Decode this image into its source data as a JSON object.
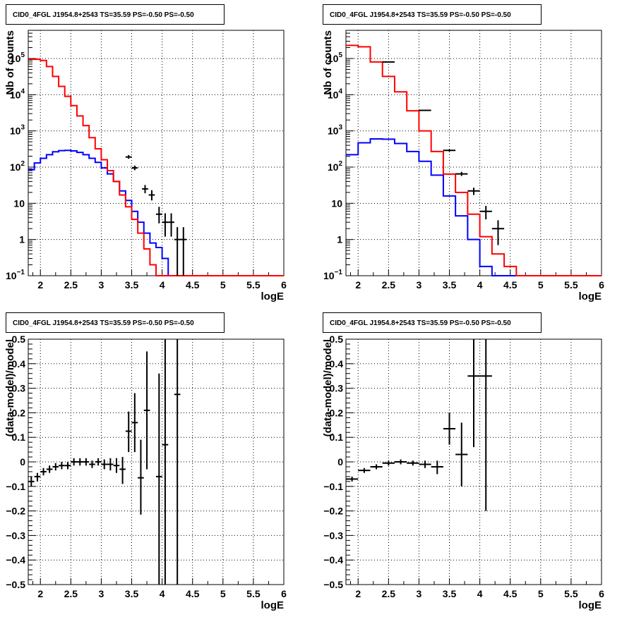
{
  "colors": {
    "data": "#000000",
    "total_model": "#ff0000",
    "source_model": "#0000ff",
    "grid": "#000000"
  },
  "panels": [
    {
      "id": "spectrum-fine",
      "kind": "log",
      "title": "CID0_4FGL J1954.8+2543 TS=35.59 PS=-0.50 PS=-0.50",
      "xlabel": "logE",
      "ylabel": "Nb of counts",
      "xlim": [
        1.8,
        6.0
      ],
      "ylim": [
        0.1,
        600000
      ],
      "x_ticks": [
        2,
        2.5,
        3,
        3.5,
        4,
        4.5,
        5,
        5.5,
        6
      ],
      "x_tick_labels": [
        "2",
        "2.5",
        "3",
        "3.5",
        "4",
        "4.5",
        "5",
        "5.5",
        "6"
      ],
      "y_ticks": [
        0.1,
        1,
        10,
        100,
        1000,
        10000,
        100000
      ],
      "y_tick_labels": [
        [
          "10",
          "−1"
        ],
        [
          "1",
          ""
        ],
        [
          "10",
          ""
        ],
        [
          "10",
          "2"
        ],
        [
          "10",
          "3"
        ],
        [
          "10",
          "4"
        ],
        [
          "10",
          "5"
        ]
      ],
      "bin_edges": [
        1.8,
        1.9,
        2.0,
        2.1,
        2.2,
        2.3,
        2.4,
        2.5,
        2.6,
        2.7,
        2.8,
        2.9,
        3.0,
        3.1,
        3.2,
        3.3,
        3.4,
        3.5,
        3.6,
        3.7,
        3.8,
        3.9,
        4.0,
        4.1,
        4.2,
        4.3,
        4.4,
        4.5,
        4.6,
        4.7,
        4.8,
        4.9,
        5.0,
        5.1,
        5.2,
        5.3,
        5.4,
        5.5,
        5.6,
        5.7,
        5.8,
        5.9,
        6.0
      ],
      "total_model": [
        95000,
        95000,
        88000,
        60000,
        32000,
        17000,
        9000,
        5000,
        2600,
        1400,
        650,
        320,
        160,
        80,
        40,
        17,
        8,
        3.6,
        1.5,
        0.55,
        0.2,
        0.1,
        0.1,
        0.1,
        0.1,
        0.1,
        0.1,
        0.1,
        0.1,
        0.1,
        0.1,
        0.1,
        0.1,
        0.1,
        0.1,
        0.1,
        0.1,
        0.1,
        0.1,
        0.1,
        0.1,
        0.1
      ],
      "source_model": [
        85,
        130,
        175,
        220,
        265,
        285,
        290,
        280,
        255,
        220,
        175,
        135,
        95,
        65,
        40,
        22,
        12,
        6,
        3,
        1.5,
        0.8,
        0.6,
        0.3,
        0.1,
        0.1,
        0.1,
        0.1,
        0.1,
        0.1,
        0.1,
        0.1,
        0.1,
        0.1,
        0.1,
        0.1,
        0.1,
        0.1,
        0.1,
        0.1,
        0.1,
        0.1,
        0.1
      ],
      "data_points": [
        {
          "x": 3.45,
          "y": 190,
          "lo": 170,
          "hi": 215,
          "xerr": 0.05
        },
        {
          "x": 3.55,
          "y": 95,
          "lo": 82,
          "hi": 110,
          "xerr": 0.05
        },
        {
          "x": 3.72,
          "y": 25,
          "lo": 19,
          "hi": 32,
          "xerr": 0.05
        },
        {
          "x": 3.83,
          "y": 17,
          "lo": 12,
          "hi": 23,
          "xerr": 0.05
        },
        {
          "x": 3.95,
          "y": 5,
          "lo": 2.8,
          "hi": 8,
          "xerr": 0.05
        },
        {
          "x": 4.05,
          "y": 3,
          "lo": 1.2,
          "hi": 5.3,
          "xerr": 0.05
        },
        {
          "x": 4.15,
          "y": 3,
          "lo": 1.2,
          "hi": 5.3,
          "xerr": 0.05
        },
        {
          "x": 4.25,
          "y": 1,
          "lo": 0.1,
          "hi": 2.2,
          "xerr": 0.05
        },
        {
          "x": 4.35,
          "y": 1,
          "lo": 0.1,
          "hi": 2.2,
          "xerr": 0.05
        }
      ]
    },
    {
      "id": "spectrum-coarse",
      "kind": "log",
      "title": "CID0_4FGL J1954.8+2543 TS=35.59 PS=-0.50 PS=-0.50",
      "xlabel": "logE",
      "ylabel": "Nb of counts",
      "xlim": [
        1.8,
        6.0
      ],
      "ylim": [
        0.1,
        600000
      ],
      "x_ticks": [
        2,
        2.5,
        3,
        3.5,
        4,
        4.5,
        5,
        5.5,
        6
      ],
      "x_tick_labels": [
        "2",
        "2.5",
        "3",
        "3.5",
        "4",
        "4.5",
        "5",
        "5.5",
        "6"
      ],
      "y_ticks": [
        0.1,
        1,
        10,
        100,
        1000,
        10000,
        100000
      ],
      "y_tick_labels": [
        [
          "10",
          "−1"
        ],
        [
          "1",
          ""
        ],
        [
          "10",
          ""
        ],
        [
          "10",
          "2"
        ],
        [
          "10",
          "3"
        ],
        [
          "10",
          "4"
        ],
        [
          "10",
          "5"
        ]
      ],
      "bin_edges": [
        1.8,
        2.0,
        2.2,
        2.4,
        2.6,
        2.8,
        3.0,
        3.2,
        3.4,
        3.6,
        3.8,
        4.0,
        4.2,
        4.4,
        4.6,
        4.8,
        5.0,
        5.2,
        5.4,
        5.6,
        5.8,
        6.0
      ],
      "total_model": [
        230000,
        210000,
        80000,
        32000,
        12000,
        3600,
        1000,
        270,
        64,
        20,
        5,
        1.2,
        0.4,
        0.18,
        0.1,
        0.1,
        0.1,
        0.1,
        0.1,
        0.1,
        0.1
      ],
      "source_model": [
        220,
        470,
        600,
        590,
        450,
        270,
        145,
        60,
        16,
        4.5,
        1,
        0.18,
        0.1,
        0.1,
        0.1,
        0.1,
        0.1,
        0.1,
        0.1,
        0.1,
        0.1
      ],
      "data_points": [
        {
          "x": 2.5,
          "y": 80000,
          "lo": 79000,
          "hi": 81000,
          "xerr": 0.1
        },
        {
          "x": 3.1,
          "y": 3700,
          "lo": 3600,
          "hi": 3800,
          "xerr": 0.1
        },
        {
          "x": 3.5,
          "y": 290,
          "lo": 270,
          "hi": 310,
          "xerr": 0.1
        },
        {
          "x": 3.7,
          "y": 65,
          "lo": 57,
          "hi": 74,
          "xerr": 0.1
        },
        {
          "x": 3.9,
          "y": 22,
          "lo": 17,
          "hi": 27,
          "xerr": 0.1
        },
        {
          "x": 4.1,
          "y": 6,
          "lo": 3.6,
          "hi": 8.5,
          "xerr": 0.1
        },
        {
          "x": 4.3,
          "y": 2,
          "lo": 0.7,
          "hi": 3.4,
          "xerr": 0.1
        }
      ]
    },
    {
      "id": "residual-fine",
      "kind": "linear",
      "title": "CID0_4FGL J1954.8+2543 TS=35.59 PS=-0.50 PS=-0.50",
      "xlabel": "logE",
      "ylabel": "(data-model)/model",
      "xlim": [
        1.8,
        6.0
      ],
      "ylim": [
        -0.5,
        0.5
      ],
      "x_ticks": [
        2,
        2.5,
        3,
        3.5,
        4,
        4.5,
        5,
        5.5,
        6
      ],
      "x_tick_labels": [
        "2",
        "2.5",
        "3",
        "3.5",
        "4",
        "4.5",
        "5",
        "5.5",
        "6"
      ],
      "y_ticks": [
        -0.5,
        -0.4,
        -0.3,
        -0.2,
        -0.1,
        0,
        0.1,
        0.2,
        0.3,
        0.4,
        0.5
      ],
      "y_tick_labels": [
        "−0.5",
        "−0.4",
        "−0.3",
        "−0.2",
        "−0.1",
        "0",
        "0.1",
        "0.2",
        "0.3",
        "0.4",
        "0.5"
      ],
      "data_points": [
        {
          "x": 1.85,
          "y": -0.08,
          "lo": -0.1,
          "hi": -0.06,
          "xerr": 0.05
        },
        {
          "x": 1.95,
          "y": -0.06,
          "lo": -0.08,
          "hi": -0.045,
          "xerr": 0.05
        },
        {
          "x": 2.05,
          "y": -0.04,
          "lo": -0.055,
          "hi": -0.025,
          "xerr": 0.05
        },
        {
          "x": 2.15,
          "y": -0.03,
          "lo": -0.045,
          "hi": -0.015,
          "xerr": 0.05
        },
        {
          "x": 2.25,
          "y": -0.02,
          "lo": -0.035,
          "hi": -0.005,
          "xerr": 0.05
        },
        {
          "x": 2.35,
          "y": -0.015,
          "lo": -0.03,
          "hi": 0.0,
          "xerr": 0.05
        },
        {
          "x": 2.45,
          "y": -0.015,
          "lo": -0.03,
          "hi": 0.0,
          "xerr": 0.05
        },
        {
          "x": 2.55,
          "y": 0.0,
          "lo": -0.015,
          "hi": 0.015,
          "xerr": 0.05
        },
        {
          "x": 2.65,
          "y": 0.0,
          "lo": -0.015,
          "hi": 0.015,
          "xerr": 0.05
        },
        {
          "x": 2.75,
          "y": 0.0,
          "lo": -0.015,
          "hi": 0.015,
          "xerr": 0.05
        },
        {
          "x": 2.85,
          "y": -0.01,
          "lo": -0.025,
          "hi": 0.005,
          "xerr": 0.05
        },
        {
          "x": 2.95,
          "y": 0.0,
          "lo": -0.015,
          "hi": 0.015,
          "xerr": 0.05
        },
        {
          "x": 3.05,
          "y": -0.01,
          "lo": -0.03,
          "hi": 0.01,
          "xerr": 0.05
        },
        {
          "x": 3.15,
          "y": -0.01,
          "lo": -0.035,
          "hi": 0.015,
          "xerr": 0.05
        },
        {
          "x": 3.25,
          "y": -0.015,
          "lo": -0.045,
          "hi": 0.015,
          "xerr": 0.05
        },
        {
          "x": 3.35,
          "y": -0.03,
          "lo": -0.09,
          "hi": 0.02,
          "xerr": 0.05
        },
        {
          "x": 3.45,
          "y": 0.125,
          "lo": 0.04,
          "hi": 0.205,
          "xerr": 0.05
        },
        {
          "x": 3.55,
          "y": 0.16,
          "lo": 0.04,
          "hi": 0.28,
          "xerr": 0.05
        },
        {
          "x": 3.65,
          "y": -0.065,
          "lo": -0.215,
          "hi": 0.09,
          "xerr": 0.05
        },
        {
          "x": 3.75,
          "y": 0.21,
          "lo": -0.03,
          "hi": 0.45,
          "xerr": 0.05
        },
        {
          "x": 3.95,
          "y": -0.06,
          "lo": -0.5,
          "hi": 0.36,
          "xerr": 0.05
        },
        {
          "x": 4.05,
          "y": 0.07,
          "lo": -0.5,
          "hi": 0.5,
          "xerr": 0.05
        },
        {
          "x": 4.25,
          "y": 0.275,
          "lo": -0.5,
          "hi": 0.5,
          "xerr": 0.05
        }
      ]
    },
    {
      "id": "residual-coarse",
      "kind": "linear",
      "title": "CID0_4FGL J1954.8+2543 TS=35.59 PS=-0.50 PS=-0.50",
      "xlabel": "logE",
      "ylabel": "(data-model)/model",
      "xlim": [
        1.8,
        6.0
      ],
      "ylim": [
        -0.5,
        0.5
      ],
      "x_ticks": [
        2,
        2.5,
        3,
        3.5,
        4,
        4.5,
        5,
        5.5,
        6
      ],
      "x_tick_labels": [
        "2",
        "2.5",
        "3",
        "3.5",
        "4",
        "4.5",
        "5",
        "5.5",
        "6"
      ],
      "y_ticks": [
        -0.5,
        -0.4,
        -0.3,
        -0.2,
        -0.1,
        0,
        0.1,
        0.2,
        0.3,
        0.4,
        0.5
      ],
      "y_tick_labels": [
        "−0.5",
        "−0.4",
        "−0.3",
        "−0.2",
        "−0.1",
        "0",
        "0.1",
        "0.2",
        "0.3",
        "0.4",
        "0.5"
      ],
      "data_points": [
        {
          "x": 1.9,
          "y": -0.07,
          "lo": -0.08,
          "hi": -0.06,
          "xerr": 0.1
        },
        {
          "x": 2.1,
          "y": -0.035,
          "lo": -0.045,
          "hi": -0.025,
          "xerr": 0.1
        },
        {
          "x": 2.3,
          "y": -0.02,
          "lo": -0.03,
          "hi": -0.01,
          "xerr": 0.1
        },
        {
          "x": 2.5,
          "y": -0.005,
          "lo": -0.015,
          "hi": 0.005,
          "xerr": 0.1
        },
        {
          "x": 2.7,
          "y": 0.0,
          "lo": -0.01,
          "hi": 0.01,
          "xerr": 0.1
        },
        {
          "x": 2.9,
          "y": -0.005,
          "lo": -0.015,
          "hi": 0.005,
          "xerr": 0.1
        },
        {
          "x": 3.1,
          "y": -0.01,
          "lo": -0.025,
          "hi": 0.005,
          "xerr": 0.1
        },
        {
          "x": 3.3,
          "y": -0.02,
          "lo": -0.05,
          "hi": 0.005,
          "xerr": 0.1
        },
        {
          "x": 3.5,
          "y": 0.135,
          "lo": 0.07,
          "hi": 0.2,
          "xerr": 0.1
        },
        {
          "x": 3.7,
          "y": 0.03,
          "lo": -0.1,
          "hi": 0.16,
          "xerr": 0.1
        },
        {
          "x": 3.9,
          "y": 0.35,
          "lo": 0.06,
          "hi": 0.5,
          "xerr": 0.1
        },
        {
          "x": 4.1,
          "y": 0.35,
          "lo": -0.2,
          "hi": 0.5,
          "xerr": 0.1
        }
      ]
    }
  ]
}
